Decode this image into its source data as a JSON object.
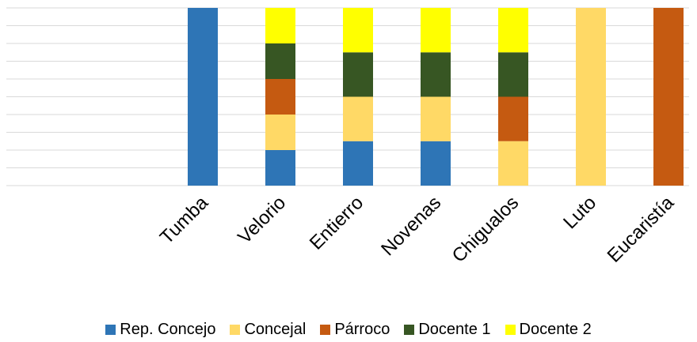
{
  "chart_data": {
    "type": "bar",
    "stacked": true,
    "categories": [
      "Tumba",
      "Velorio",
      "Entierro",
      "Novenas",
      "Chigualos",
      "Luto",
      "Eucaristía"
    ],
    "series": [
      {
        "name": "Rep. Concejo",
        "color": "#2E75B6",
        "values": [
          100,
          20,
          25,
          25,
          0,
          0,
          0
        ]
      },
      {
        "name": "Concejal",
        "color": "#FFD966",
        "values": [
          0,
          20,
          25,
          25,
          25,
          100,
          0
        ]
      },
      {
        "name": "Párroco",
        "color": "#C55A11",
        "values": [
          0,
          20,
          0,
          0,
          25,
          0,
          100
        ]
      },
      {
        "name": "Docente 1",
        "color": "#375623",
        "values": [
          0,
          20,
          25,
          25,
          25,
          0,
          0
        ]
      },
      {
        "name": "Docente 2",
        "color": "#FFFF00",
        "values": [
          0,
          20,
          25,
          25,
          25,
          0,
          0
        ]
      }
    ],
    "ylim": [
      0,
      100
    ],
    "grid": true,
    "legend_position": "bottom"
  }
}
